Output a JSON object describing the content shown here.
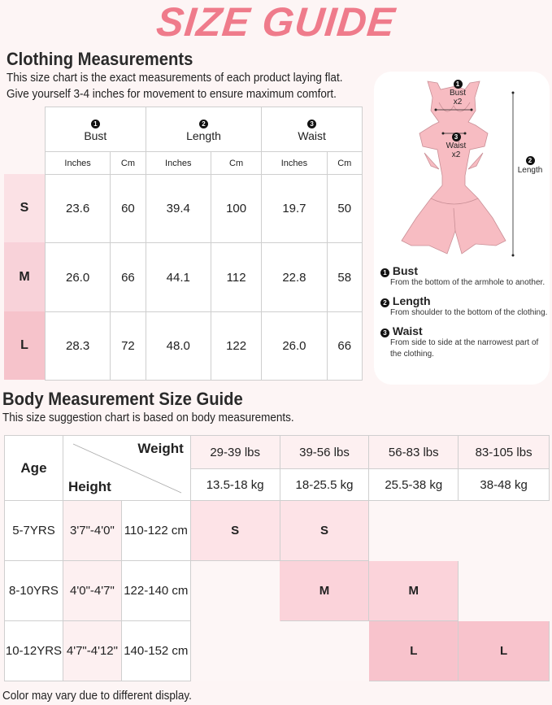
{
  "title": "SIZE GUIDE",
  "clothing": {
    "heading": "Clothing Measurements",
    "desc": [
      "This size chart is the exact measurements of each product laying flat.",
      "Give yourself 3-4 inches for movement to ensure maximum comfort."
    ],
    "columns": [
      {
        "num": "1",
        "label": "Bust"
      },
      {
        "num": "2",
        "label": "Length"
      },
      {
        "num": "3",
        "label": "Waist"
      }
    ],
    "units": [
      "Inches",
      "Cm"
    ],
    "rows": [
      {
        "size": "S",
        "values": [
          "23.6",
          "60",
          "39.4",
          "100",
          "19.7",
          "50"
        ]
      },
      {
        "size": "M",
        "values": [
          "26.0",
          "66",
          "44.1",
          "112",
          "22.8",
          "58"
        ]
      },
      {
        "size": "L",
        "values": [
          "28.3",
          "72",
          "48.0",
          "122",
          "26.0",
          "66"
        ]
      }
    ],
    "size_colors": [
      "#fbe1e5",
      "#f8d2d9",
      "#f6c3cb"
    ]
  },
  "diagram": {
    "bust_label": "Bust",
    "bust_mult": "x2",
    "waist_label": "Waist",
    "waist_mult": "x2",
    "length_label": "Length",
    "legend": [
      {
        "num": "1",
        "title": "Bust",
        "desc": "From the bottom of the armhole to another."
      },
      {
        "num": "2",
        "title": "Length",
        "desc": "From shoulder to the bottom of the clothing."
      },
      {
        "num": "3",
        "title": "Waist",
        "desc": "From side to side at the narrowest part of the clothing."
      }
    ],
    "dress_color": "#f7bcc2"
  },
  "body": {
    "heading": "Body Measurement Size Guide",
    "desc": "This size suggestion chart is based on body measurements.",
    "age_label": "Age",
    "weight_label": "Weight",
    "height_label": "Height",
    "weights_lbs": [
      "29-39 lbs",
      "39-56 lbs",
      "56-83 lbs",
      "83-105 lbs"
    ],
    "weights_kg": [
      "13.5-18 kg",
      "18-25.5 kg",
      "25.5-38 kg",
      "38-48 kg"
    ],
    "rows": [
      {
        "age": "5-7YRS",
        "height_ft": "3'7\"-4'0\"",
        "height_cm": "110-122 cm",
        "sizes": [
          "S",
          "S",
          "",
          ""
        ]
      },
      {
        "age": "8-10YRS",
        "height_ft": "4'0\"-4'7\"",
        "height_cm": "122-140 cm",
        "sizes": [
          "",
          "M",
          "M",
          ""
        ]
      },
      {
        "age": "10-12YRS",
        "height_ft": "4'7\"-4'12\"",
        "height_cm": "140-152 cm",
        "sizes": [
          "",
          "",
          "L",
          "L"
        ]
      }
    ]
  },
  "footer": "Color may vary due to different display."
}
